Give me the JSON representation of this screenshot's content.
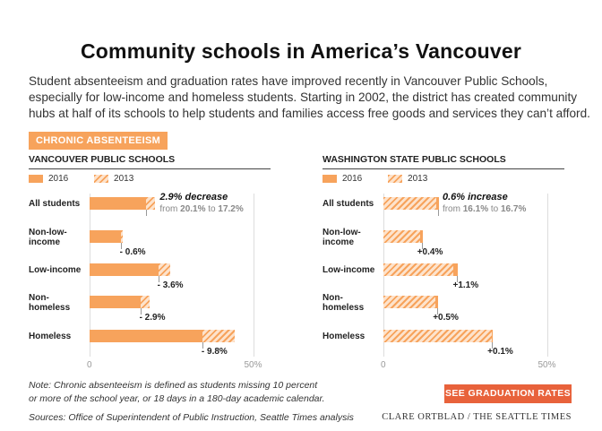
{
  "title": "Community schools in America’s Vancouver",
  "intro_lines": [
    "Student absenteeism and graduation rates have improved recently in Vancouver Public Schools,",
    "especially for low-income and homeless students. Starting in 2002, the district has created community",
    "hubs at half of its schools to help students and families access free goods and services they can’t afford."
  ],
  "section_tag": "CHRONIC ABSENTEEISM",
  "legend": {
    "y2016": "2016",
    "y2013": "2013"
  },
  "colors": {
    "accent": "#f7a35c",
    "hatch_light": "#fde3cc",
    "cta": "#e8623b"
  },
  "chart_data": [
    {
      "type": "bar",
      "title": "VANCOUVER PUBLIC SCHOOLS",
      "categories": [
        "All students",
        "Non-low-income",
        "Low-income",
        "Non-homeless",
        "Homeless"
      ],
      "series": [
        {
          "name": "2016",
          "values": [
            17.2,
            9.5,
            21.0,
            15.5,
            34.5
          ]
        },
        {
          "name": "2013",
          "values": [
            20.1,
            10.1,
            24.6,
            18.4,
            44.3
          ]
        }
      ],
      "change_labels": [
        "2.9% decrease",
        "- 0.6%",
        "- 3.6%",
        "- 2.9%",
        "- 9.8%"
      ],
      "annotation_sub": {
        "prefix": "from ",
        "from": "20.1%",
        "mid": " to ",
        "to": "17.2%"
      },
      "xlim": [
        0,
        50
      ],
      "x_ticks": [
        "0",
        "50%"
      ]
    },
    {
      "type": "bar",
      "title": "WASHINGTON STATE PUBLIC SCHOOLS",
      "categories": [
        "All students",
        "Non-low-income",
        "Low-income",
        "Non-homeless",
        "Homeless"
      ],
      "series": [
        {
          "name": "2016",
          "values": [
            16.7,
            11.7,
            22.6,
            16.5,
            33.2
          ]
        },
        {
          "name": "2013",
          "values": [
            16.1,
            11.3,
            21.5,
            16.0,
            33.1
          ]
        }
      ],
      "change_labels": [
        "0.6% increase",
        "+0.4%",
        "+1.1%",
        "+0.5%",
        "+0.1%"
      ],
      "annotation_sub": {
        "prefix": "from ",
        "from": "16.1%",
        "mid": " to ",
        "to": "16.7%"
      },
      "xlim": [
        0,
        50
      ],
      "x_ticks": [
        "0",
        "50%"
      ]
    }
  ],
  "row_labels": [
    "All students",
    "Non-low-\nincome",
    "Low-income",
    "Non-\nhomeless",
    "Homeless"
  ],
  "note_lines": [
    "Note: Chronic absenteeism is defined as students missing 10 percent",
    "or more of the school year, or 18 days in a 180-day academic calendar."
  ],
  "source": "Sources: Office of Superintendent of Public Instruction, Seattle Times analysis",
  "credit": "CLARE ORTBLAD / THE SEATTLE TIMES",
  "cta_label": "SEE GRADUATION RATES ❯"
}
